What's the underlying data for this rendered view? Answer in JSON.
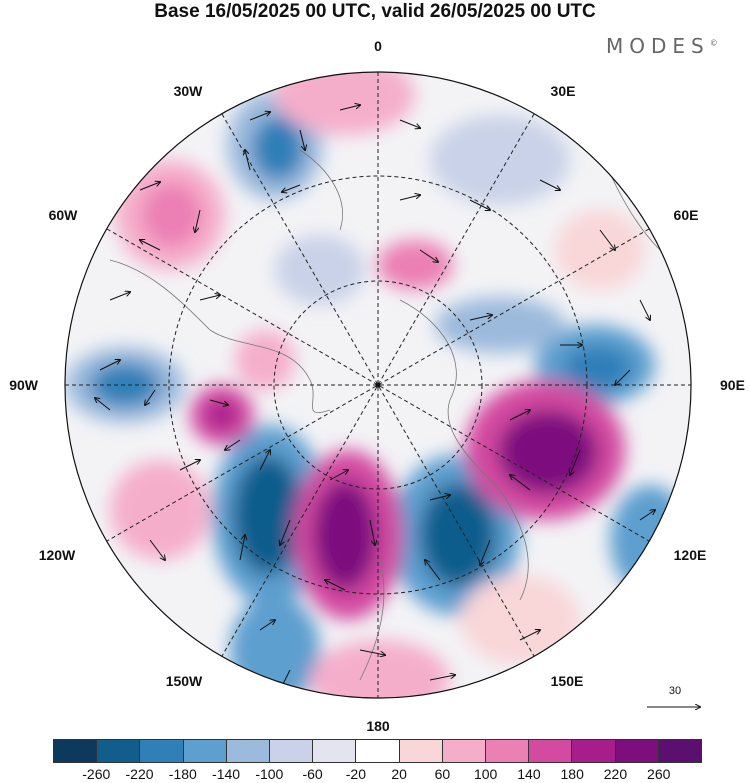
{
  "title": "Base 16/05/2025 00 UTC, valid 26/05/2025 00 UTC",
  "brand": "MODES",
  "brand_mark": "©",
  "longitude_labels": {
    "top": "0",
    "top_right": "30E",
    "right_upper": "60E",
    "right": "90E",
    "right_lower": "120E",
    "bottom_right": "150E",
    "bottom": "180",
    "bottom_left": "150W",
    "left_lower": "120W",
    "left": "90W",
    "left_upper": "60W",
    "top_left": "30W"
  },
  "vector_reference": {
    "value": "30"
  },
  "colorbar": {
    "levels": [
      "-260",
      "-220",
      "-180",
      "-140",
      "-100",
      "-60",
      "-20",
      "20",
      "60",
      "100",
      "140",
      "180",
      "220",
      "260"
    ],
    "colors": [
      "#0d3a5c",
      "#115d8c",
      "#2f7fb8",
      "#5d9fcf",
      "#9bbadc",
      "#c9d2e8",
      "#e4e4f0",
      "#ffffff",
      "#f9d6d8",
      "#f5aeca",
      "#ec7fb4",
      "#d34aa0",
      "#a81d8c",
      "#7d0e7e",
      "#5b0f6e"
    ]
  }
}
